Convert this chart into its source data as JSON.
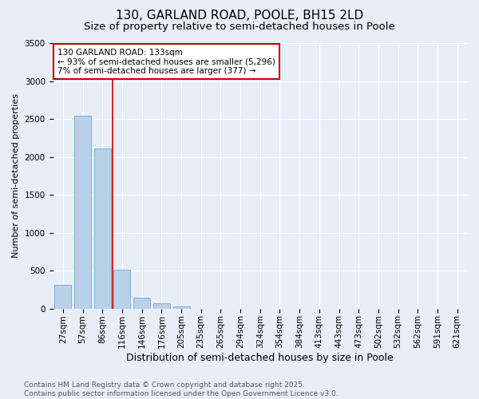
{
  "title": "130, GARLAND ROAD, POOLE, BH15 2LD",
  "subtitle": "Size of property relative to semi-detached houses in Poole",
  "xlabel": "Distribution of semi-detached houses by size in Poole",
  "ylabel": "Number of semi-detached properties",
  "categories": [
    "27sqm",
    "57sqm",
    "86sqm",
    "116sqm",
    "146sqm",
    "176sqm",
    "205sqm",
    "235sqm",
    "265sqm",
    "294sqm",
    "324sqm",
    "354sqm",
    "384sqm",
    "413sqm",
    "443sqm",
    "473sqm",
    "502sqm",
    "532sqm",
    "562sqm",
    "591sqm",
    "621sqm"
  ],
  "values": [
    310,
    2540,
    2110,
    510,
    145,
    70,
    30,
    0,
    0,
    0,
    0,
    0,
    0,
    0,
    0,
    0,
    0,
    0,
    0,
    0,
    0
  ],
  "bar_color": "#b8d0e8",
  "bar_edge_color": "#6aaed6",
  "vline_x_index": 3,
  "vline_color": "#cc0000",
  "annotation_title": "130 GARLAND ROAD: 133sqm",
  "annotation_line2": "← 93% of semi-detached houses are smaller (5,296)",
  "annotation_line3": "7% of semi-detached houses are larger (377) →",
  "annotation_box_color": "#cc0000",
  "ylim": [
    0,
    3500
  ],
  "yticks": [
    0,
    500,
    1000,
    1500,
    2000,
    2500,
    3000,
    3500
  ],
  "bg_color": "#e8eef8",
  "plot_bg_color": "#e8eef8",
  "footer_line1": "Contains HM Land Registry data © Crown copyright and database right 2025.",
  "footer_line2": "Contains public sector information licensed under the Open Government Licence v3.0.",
  "title_fontsize": 11,
  "subtitle_fontsize": 9.5,
  "xlabel_fontsize": 9,
  "ylabel_fontsize": 8,
  "tick_fontsize": 7.5,
  "footer_fontsize": 6.5,
  "ann_fontsize": 7.5
}
